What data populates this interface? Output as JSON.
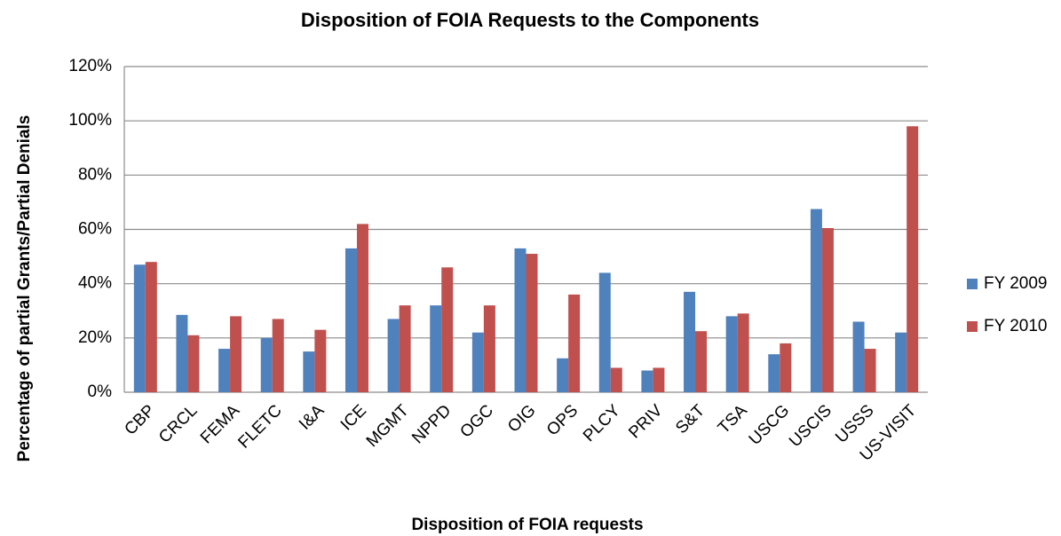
{
  "chart_data": {
    "type": "bar",
    "title": "Disposition of FOIA Requests to the Components",
    "x_label": "Disposition of FOIA requests",
    "y_label": "Percentage of partial Grants/Partial Denials",
    "categories": [
      "CBP",
      "CRCL",
      "FEMA",
      "FLETC",
      "I&A",
      "ICE",
      "MGMT",
      "NPPD",
      "OGC",
      "OIG",
      "OPS",
      "PLCY",
      "PRIV",
      "S&T",
      "TSA",
      "USCG",
      "USCIS",
      "USSS",
      "US-VISIT"
    ],
    "series": [
      {
        "name": "FY 2009",
        "color": "#4f81bd",
        "values": [
          47,
          28.5,
          16,
          20,
          15,
          53,
          27,
          32,
          22,
          53,
          12.5,
          44,
          8,
          37,
          28,
          14,
          67.5,
          26,
          22
        ]
      },
      {
        "name": "FY 2010",
        "color": "#c0504d",
        "values": [
          48,
          21,
          28,
          27,
          23,
          62,
          32,
          46,
          32,
          51,
          36,
          9,
          9,
          22.5,
          29,
          18,
          60.5,
          16,
          98
        ]
      }
    ],
    "ylim": [
      0,
      120
    ],
    "yticks": [
      {
        "value": 0,
        "label": "0%"
      },
      {
        "value": 20,
        "label": "20%"
      },
      {
        "value": 40,
        "label": "40%"
      },
      {
        "value": 60,
        "label": "60%"
      },
      {
        "value": 80,
        "label": "80%"
      },
      {
        "value": 100,
        "label": "100%"
      },
      {
        "value": 120,
        "label": "120%"
      }
    ],
    "grid": true,
    "legend": "right"
  }
}
